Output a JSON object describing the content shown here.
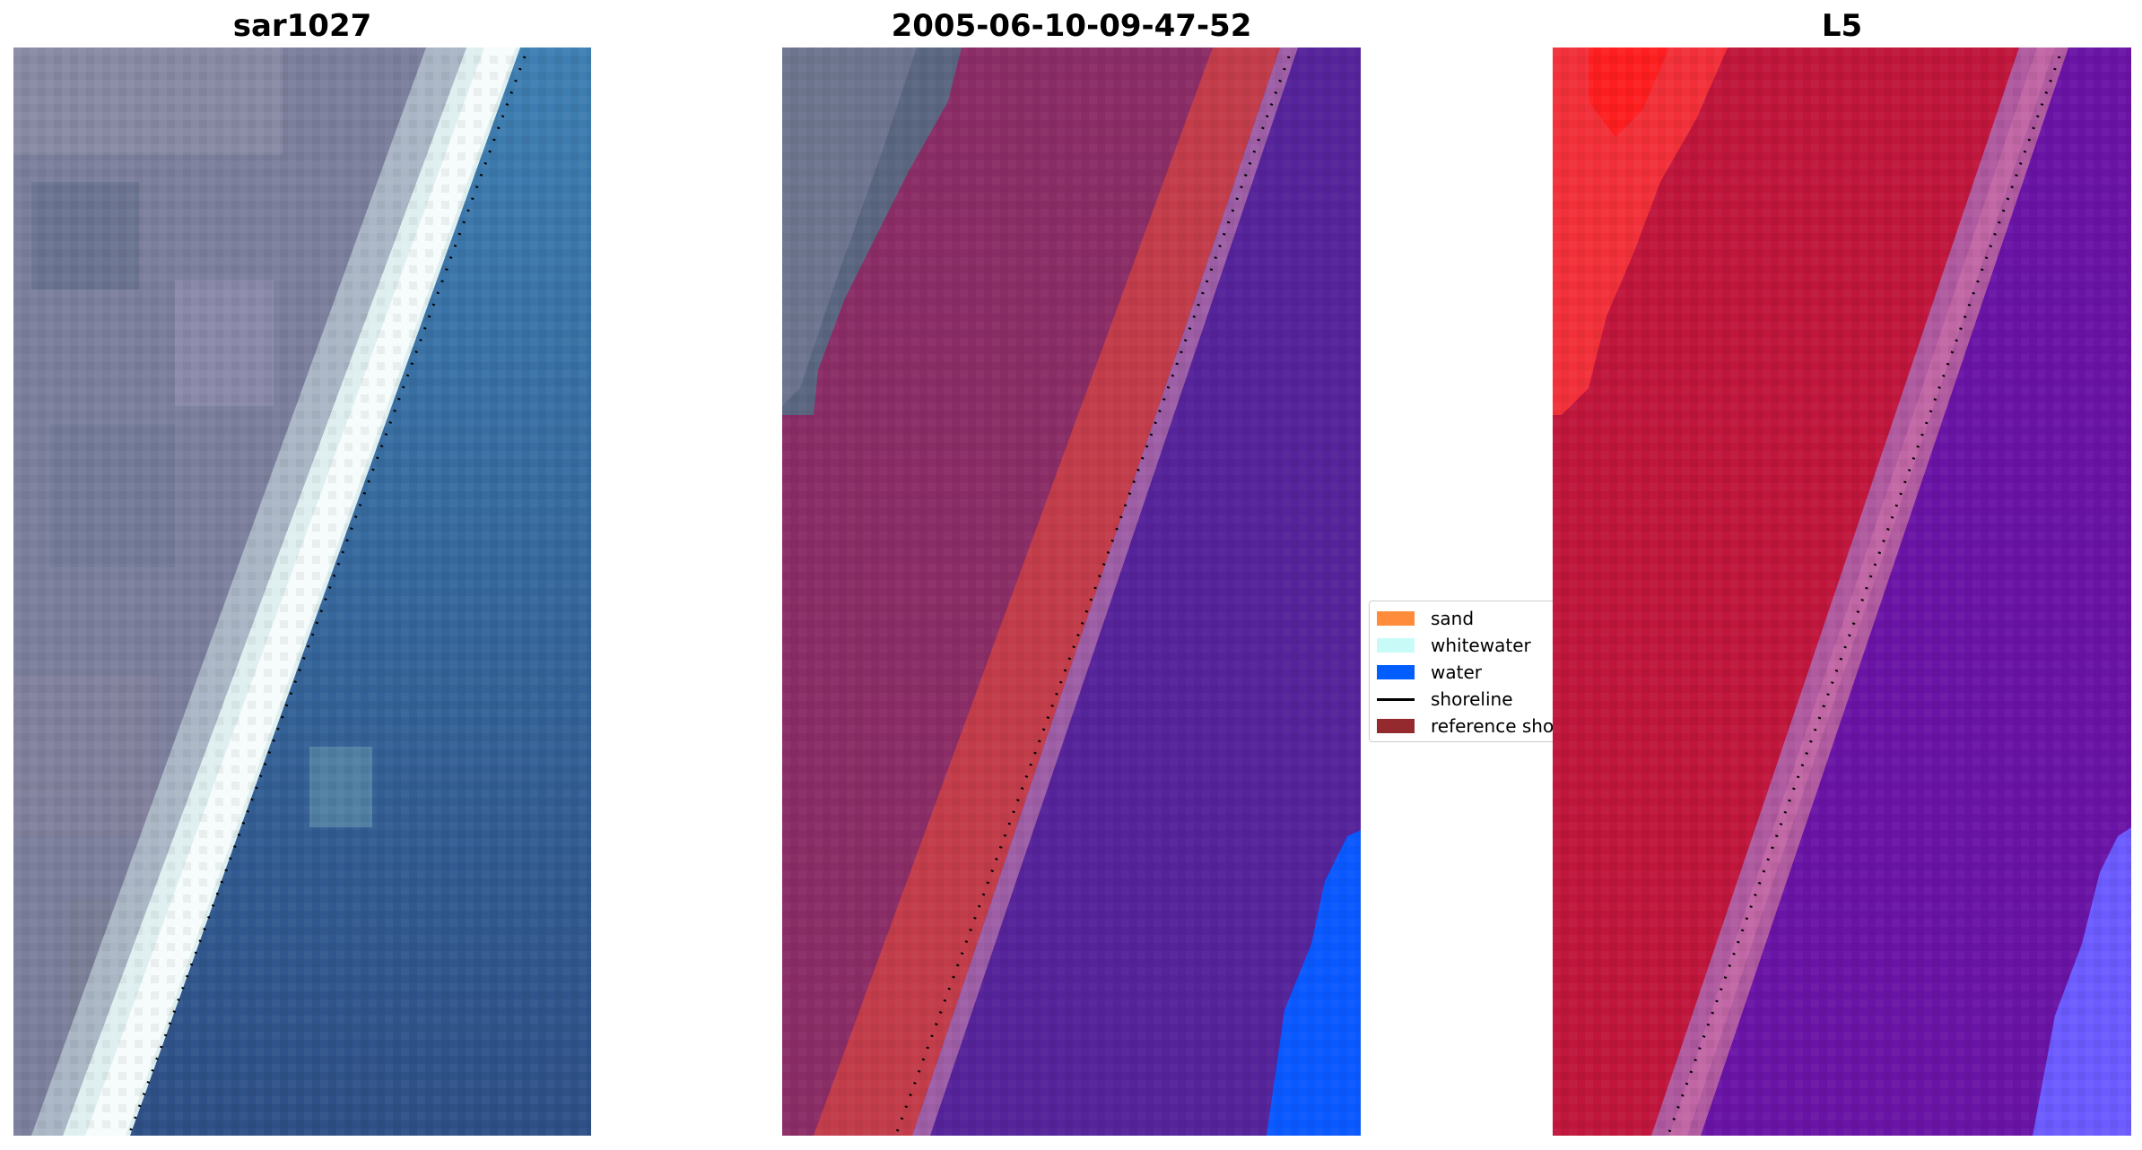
{
  "panels": [
    {
      "title": "sar1027"
    },
    {
      "title": "2005-06-10-09-47-52"
    },
    {
      "title": "L5"
    }
  ],
  "legend": {
    "items": [
      {
        "label": "sand",
        "color": "#ff8c3a",
        "kind": "patch"
      },
      {
        "label": "whitewater",
        "color": "#c8fbf8",
        "kind": "patch"
      },
      {
        "label": "water",
        "color": "#005eff",
        "kind": "patch"
      },
      {
        "label": "shoreline",
        "color": "#000000",
        "kind": "line"
      },
      {
        "label": "reference shoreline",
        "color": "#952a2e",
        "kind": "patch"
      }
    ]
  },
  "colors": {
    "land_rgb": "#7f7f9a",
    "surf_rgb": "#e8f4f4",
    "water_rgb": "#2f70a6",
    "land_class": "#8a2d66",
    "sand_band_class": "#c23c4a",
    "water_class": "#55239a",
    "open_water_class": "#0a58ff",
    "land_index": "#c0163c",
    "water_index": "#6a14a6"
  }
}
